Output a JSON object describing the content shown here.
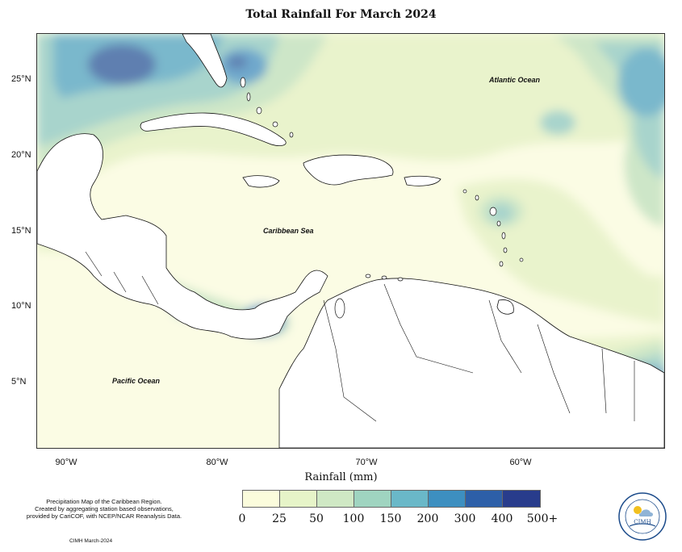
{
  "title": "Total Rainfall For March 2024",
  "axes": {
    "latitude_labels": [
      "25°N",
      "20°N",
      "15°N",
      "10°N",
      "5°N"
    ],
    "longitude_labels": [
      "90°W",
      "80°W",
      "70°W",
      "60°W"
    ]
  },
  "map_labels": {
    "atlantic": "Atlantic Ocean",
    "caribbean": "Caribbean Sea",
    "pacific": "Pacific Ocean"
  },
  "legend": {
    "title": "Rainfall (mm)",
    "ticks": [
      "0",
      "25",
      "50",
      "100",
      "150",
      "200",
      "300",
      "400",
      "500+"
    ],
    "colors": [
      "#fbfcdc",
      "#e6f4c8",
      "#cfe8c4",
      "#9fd4c0",
      "#6ab8c8",
      "#3d8fc0",
      "#2d5fa8",
      "#283c8c",
      "#0e1e58"
    ]
  },
  "credits": {
    "line1": "Precipitation Map of the Caribbean Region.",
    "line2": "Created by aggregating station based observations,",
    "line3": "provided by CariCOF, with NCEP/NCAR Reanalysis Data.",
    "footer": "CIMH March-2024"
  },
  "logo": {
    "text": "CIMH"
  }
}
